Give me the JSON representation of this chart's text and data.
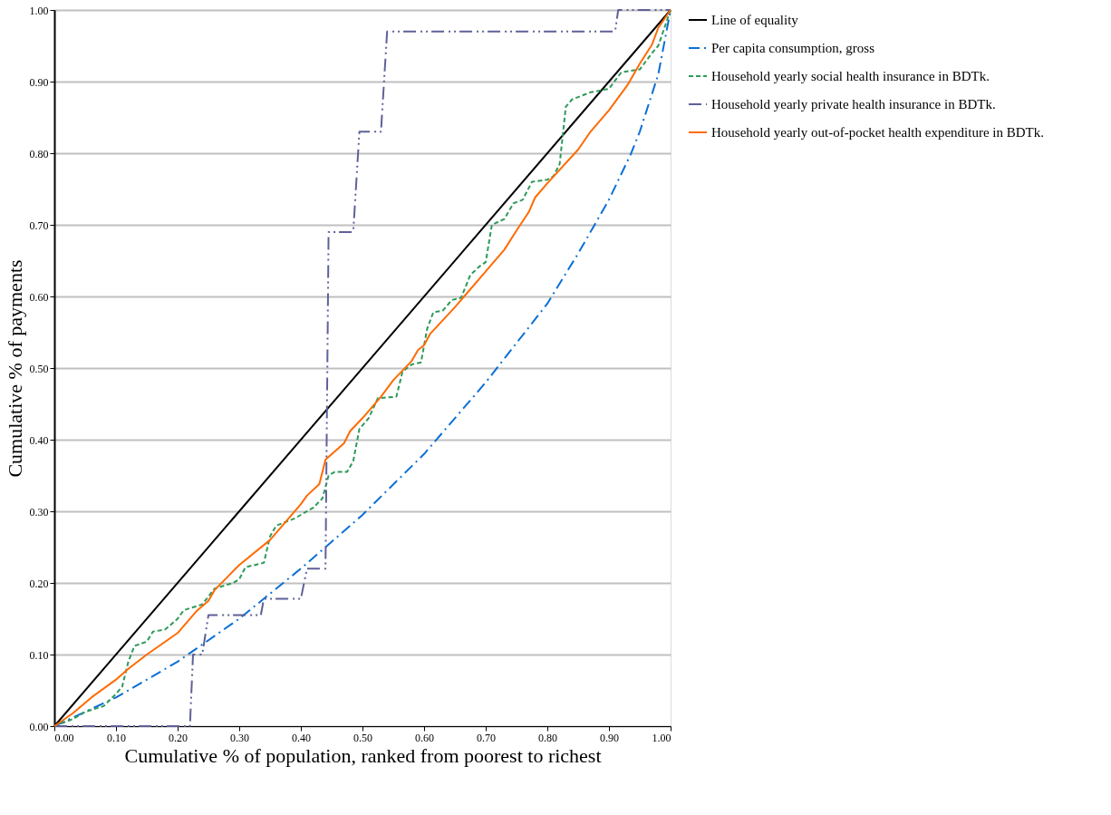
{
  "chart_data": {
    "type": "line",
    "xlabel": "Cumulative % of population, ranked from poorest to richest",
    "ylabel": "Cumulative % of payments",
    "xlim": [
      0,
      1
    ],
    "ylim": [
      0,
      1
    ],
    "xticks": [
      {
        "value": 0,
        "label": "0.00"
      },
      {
        "value": 0.1,
        "label": "0.10"
      },
      {
        "value": 0.2,
        "label": "0.20"
      },
      {
        "value": 0.3,
        "label": "0.30"
      },
      {
        "value": 0.4,
        "label": "0.40"
      },
      {
        "value": 0.5,
        "label": "0.50"
      },
      {
        "value": 0.6,
        "label": "0.60"
      },
      {
        "value": 0.7,
        "label": "0.70"
      },
      {
        "value": 0.8,
        "label": "0.80"
      },
      {
        "value": 0.9,
        "label": "0.90"
      },
      {
        "value": 1,
        "label": "1.00"
      }
    ],
    "yticks": [
      {
        "value": 0,
        "label": "0.00"
      },
      {
        "value": 0.1,
        "label": "0.10"
      },
      {
        "value": 0.2,
        "label": "0.20"
      },
      {
        "value": 0.3,
        "label": "0.30"
      },
      {
        "value": 0.4,
        "label": "0.40"
      },
      {
        "value": 0.5,
        "label": "0.50"
      },
      {
        "value": 0.6,
        "label": "0.60"
      },
      {
        "value": 0.7,
        "label": "0.70"
      },
      {
        "value": 0.8,
        "label": "0.80"
      },
      {
        "value": 0.9,
        "label": "0.90"
      },
      {
        "value": 1,
        "label": "1.00"
      }
    ],
    "grid": "y",
    "legend": "right",
    "marker": "none",
    "series": [
      {
        "name": "Line of equality",
        "color": "#000000",
        "line_style": "solid",
        "x": [
          0,
          1
        ],
        "values": [
          0,
          1
        ]
      },
      {
        "name": "Per capita consumption, gross",
        "color": "#0b6fd6",
        "line_style": "dashdot",
        "x": [
          0,
          0.1,
          0.2,
          0.3,
          0.4,
          0.5,
          0.6,
          0.7,
          0.8,
          0.85,
          0.9,
          0.935,
          0.95,
          0.98,
          1
        ],
        "values": [
          0,
          0.04,
          0.09,
          0.15,
          0.22,
          0.295,
          0.38,
          0.48,
          0.59,
          0.66,
          0.735,
          0.798,
          0.83,
          0.91,
          1
        ]
      },
      {
        "name": "Household yearly social health insurance in BDTk.",
        "color": "#2e9a5a",
        "line_style": "dashed",
        "x": [
          0,
          0.03,
          0.05,
          0.08,
          0.1,
          0.11,
          0.12,
          0.13,
          0.15,
          0.16,
          0.18,
          0.2,
          0.21,
          0.24,
          0.26,
          0.29,
          0.3,
          0.31,
          0.34,
          0.35,
          0.36,
          0.39,
          0.42,
          0.435,
          0.445,
          0.455,
          0.475,
          0.485,
          0.495,
          0.51,
          0.525,
          0.555,
          0.565,
          0.58,
          0.595,
          0.605,
          0.615,
          0.63,
          0.645,
          0.66,
          0.675,
          0.69,
          0.7,
          0.71,
          0.73,
          0.745,
          0.76,
          0.775,
          0.8,
          0.81,
          0.82,
          0.83,
          0.84,
          0.87,
          0.9,
          0.92,
          0.95,
          0.97,
          0.98,
          1
        ],
        "values": [
          0,
          0.01,
          0.02,
          0.028,
          0.045,
          0.055,
          0.09,
          0.112,
          0.118,
          0.132,
          0.135,
          0.15,
          0.162,
          0.17,
          0.192,
          0.2,
          0.205,
          0.222,
          0.228,
          0.265,
          0.28,
          0.29,
          0.305,
          0.318,
          0.35,
          0.355,
          0.355,
          0.37,
          0.415,
          0.43,
          0.458,
          0.46,
          0.495,
          0.505,
          0.508,
          0.555,
          0.578,
          0.58,
          0.595,
          0.598,
          0.63,
          0.642,
          0.648,
          0.7,
          0.708,
          0.73,
          0.735,
          0.76,
          0.763,
          0.768,
          0.785,
          0.865,
          0.875,
          0.885,
          0.89,
          0.913,
          0.917,
          0.94,
          0.95,
          1
        ]
      },
      {
        "name": "Household yearly private health insurance in BDTk.",
        "color": "#5f6099",
        "line_style": "dashdotdot",
        "x": [
          0,
          0.22,
          0.225,
          0.24,
          0.25,
          0.335,
          0.34,
          0.4,
          0.41,
          0.44,
          0.445,
          0.485,
          0.495,
          0.53,
          0.54,
          0.91,
          0.915,
          1
        ],
        "values": [
          0,
          0,
          0.1,
          0.1,
          0.155,
          0.155,
          0.178,
          0.178,
          0.22,
          0.22,
          0.69,
          0.69,
          0.83,
          0.83,
          0.97,
          0.97,
          1,
          1
        ]
      },
      {
        "name": "Household yearly out-of-pocket health expenditure in BDTk.",
        "color": "#ff6a00",
        "line_style": "solid",
        "x": [
          0,
          0.03,
          0.06,
          0.1,
          0.12,
          0.15,
          0.2,
          0.23,
          0.25,
          0.26,
          0.3,
          0.35,
          0.4,
          0.41,
          0.43,
          0.44,
          0.47,
          0.48,
          0.5,
          0.53,
          0.55,
          0.58,
          0.59,
          0.6,
          0.61,
          0.65,
          0.7,
          0.73,
          0.75,
          0.77,
          0.78,
          0.8,
          0.85,
          0.87,
          0.9,
          0.93,
          0.95,
          0.97,
          0.98,
          1
        ],
        "values": [
          0,
          0.018,
          0.04,
          0.065,
          0.08,
          0.1,
          0.13,
          0.16,
          0.175,
          0.19,
          0.225,
          0.26,
          0.31,
          0.322,
          0.338,
          0.372,
          0.395,
          0.412,
          0.43,
          0.46,
          0.483,
          0.51,
          0.525,
          0.532,
          0.548,
          0.585,
          0.635,
          0.665,
          0.692,
          0.718,
          0.738,
          0.758,
          0.805,
          0.83,
          0.86,
          0.895,
          0.925,
          0.952,
          0.975,
          1
        ]
      }
    ]
  }
}
